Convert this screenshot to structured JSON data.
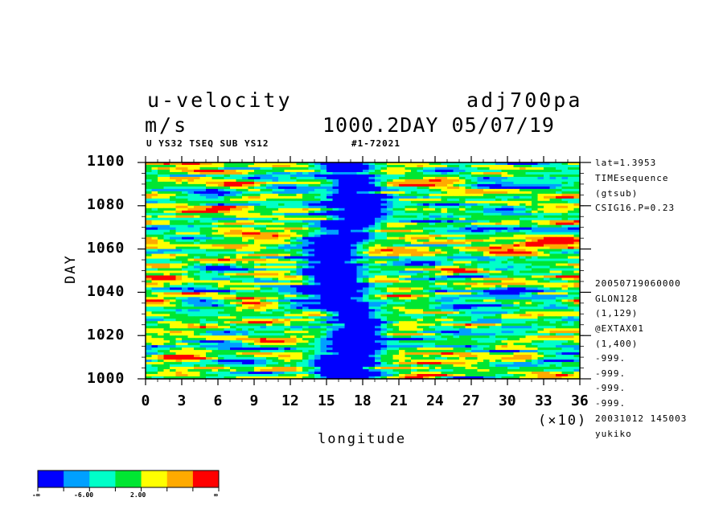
{
  "header": {
    "variable": "u-velocity",
    "units": "m/s",
    "experiment": "adj700pa",
    "time_label": "1000.2DAY 05/07/19",
    "subtitle": "U YS32 TSEQ SUB YS12",
    "record": "#1-72021"
  },
  "side_info": {
    "top": [
      "lat=1.3953",
      "TIMEsequence",
      "(gtsub)",
      "CSIG16.P=0.23"
    ],
    "bottom": [
      "20050719060000",
      "GLON128",
      "(1,129)",
      "@EXTAX01",
      "(1,400)",
      "-999.",
      "-999.",
      "-999.",
      "-999.",
      "20031012 145003",
      "yukiko"
    ]
  },
  "chart_data": {
    "type": "heatmap",
    "title": "u-velocity",
    "xlabel": "longitude",
    "x_multiplier": "(×10)",
    "ylabel": "DAY",
    "xlim": [
      0,
      36
    ],
    "ylim": [
      1000,
      1100
    ],
    "x_ticks": [
      "0",
      "3",
      "6",
      "9",
      "12",
      "15",
      "18",
      "21",
      "24",
      "27",
      "30",
      "33",
      "36"
    ],
    "y_ticks": [
      "1000",
      "1020",
      "1040",
      "1060",
      "1080",
      "1100"
    ],
    "color_levels": [
      "#0000ff",
      "#00a0ff",
      "#00ffc8",
      "#00e632",
      "#ffff00",
      "#ffaa00",
      "#ff0000"
    ],
    "colorbar_labels": [
      "-∞",
      "-6.00",
      "2.00",
      "∞"
    ],
    "description": "Noisy horizontal streaks of u-velocity; a persistent band of strong negative (blue) values centered near longitude 16-17 (×10) spans all days."
  }
}
